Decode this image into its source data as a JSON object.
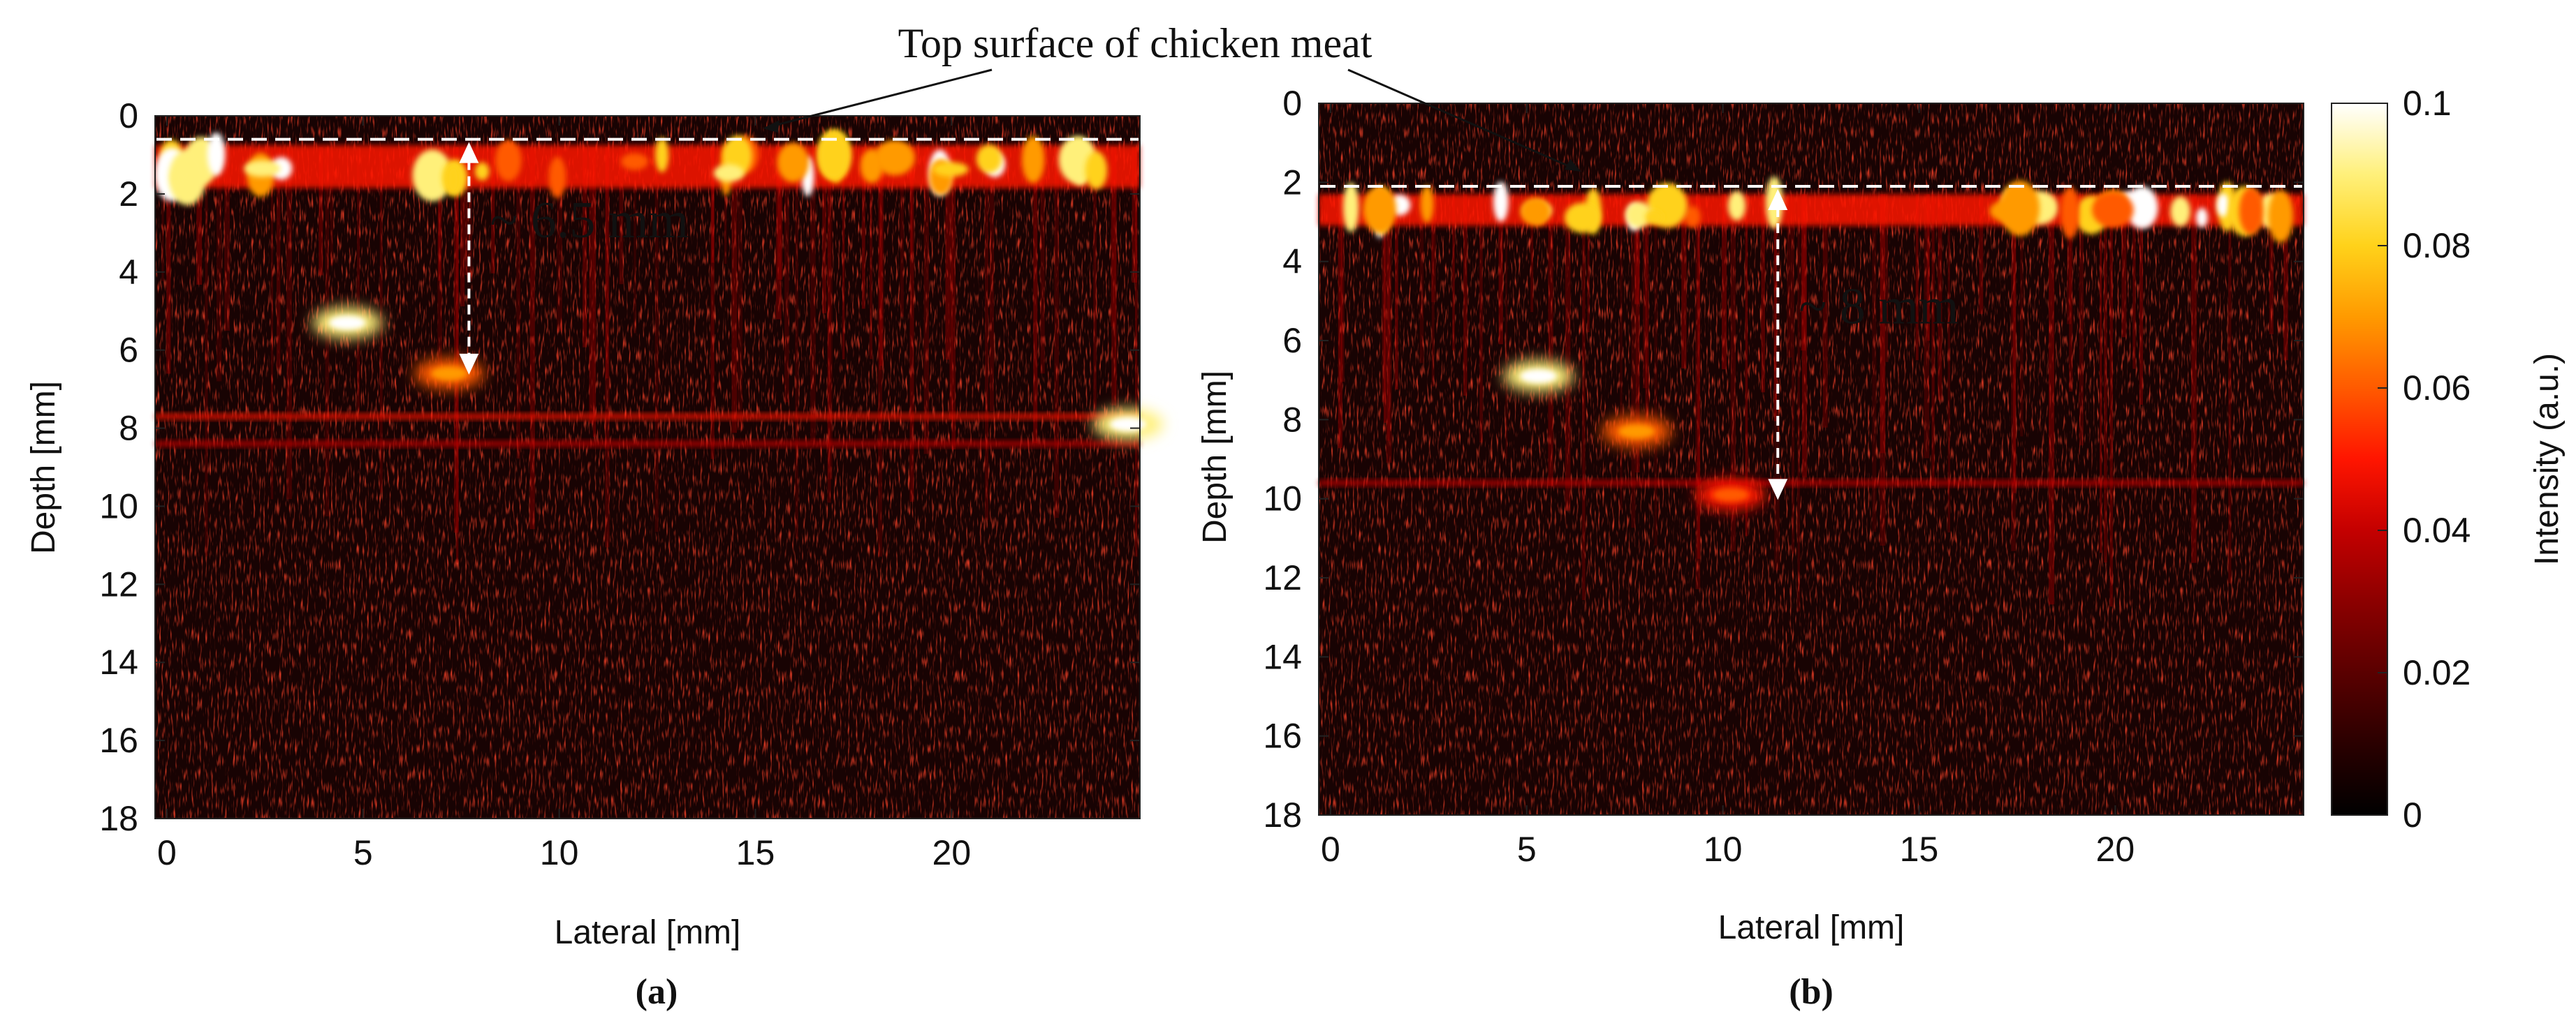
{
  "annotation_top": "Top surface of chicken meat",
  "colorbar": {
    "label": "Intensity (a.u.)",
    "ticks": [
      "0.1",
      "0.08",
      "0.06",
      "0.04",
      "0.02",
      "0"
    ],
    "range": [
      0,
      0.1
    ],
    "colormap": [
      "#000000",
      "#2a0000",
      "#5a0000",
      "#8c0000",
      "#c40000",
      "#ff1500",
      "#ff5a00",
      "#ff9a00",
      "#ffd21a",
      "#fff07a",
      "#ffffff"
    ]
  },
  "chart_data": [
    {
      "type": "heatmap",
      "panel_label": "(a)",
      "xlabel": "Lateral [mm]",
      "ylabel": "Depth [mm]",
      "xlim": [
        -0.3,
        24.8
      ],
      "ylim": [
        0,
        18
      ],
      "y_reversed": true,
      "xticks": [
        "0",
        "5",
        "10",
        "15",
        "20"
      ],
      "yticks": [
        "0",
        "2",
        "4",
        "6",
        "8",
        "10",
        "12",
        "14",
        "16",
        "18"
      ],
      "surface_depth_mm": 0.6,
      "arrow": {
        "x_mm": 7.7,
        "from_depth_mm": 0.6,
        "to_depth_mm": 6.7,
        "label": "~ 6.5 mm"
      },
      "features": [
        {
          "kind": "bright-band",
          "depth_mm": 1.3,
          "thickness_mm": 1.1,
          "intensity": 0.085
        },
        {
          "kind": "horizontal-line",
          "depth_mm": 7.7,
          "intensity": 0.05
        },
        {
          "kind": "horizontal-line",
          "depth_mm": 8.4,
          "intensity": 0.04
        },
        {
          "kind": "blob",
          "x_mm": 4.6,
          "depth_mm": 5.3,
          "intensity": 0.09
        },
        {
          "kind": "blob",
          "x_mm": 7.2,
          "depth_mm": 6.6,
          "intensity": 0.06
        },
        {
          "kind": "blob",
          "x_mm": 24.5,
          "depth_mm": 7.9,
          "intensity": 0.09
        }
      ]
    },
    {
      "type": "heatmap",
      "panel_label": "(b)",
      "xlabel": "Lateral [mm]",
      "ylabel": "Depth [mm]",
      "xlim": [
        -0.3,
        24.8
      ],
      "ylim": [
        0,
        18
      ],
      "y_reversed": true,
      "xticks": [
        "0",
        "5",
        "10",
        "15",
        "20"
      ],
      "yticks": [
        "0",
        "2",
        "4",
        "6",
        "8",
        "10",
        "12",
        "14",
        "16",
        "18"
      ],
      "surface_depth_mm": 2.1,
      "arrow": {
        "x_mm": 11.4,
        "from_depth_mm": 2.1,
        "to_depth_mm": 10.1,
        "label": "~ 8 mm"
      },
      "features": [
        {
          "kind": "bright-band",
          "depth_mm": 2.7,
          "thickness_mm": 0.8,
          "intensity": 0.085
        },
        {
          "kind": "horizontal-line",
          "depth_mm": 9.6,
          "intensity": 0.04
        },
        {
          "kind": "blob",
          "x_mm": 5.3,
          "depth_mm": 6.9,
          "intensity": 0.09
        },
        {
          "kind": "blob",
          "x_mm": 7.8,
          "depth_mm": 8.3,
          "intensity": 0.06
        },
        {
          "kind": "blob",
          "x_mm": 10.2,
          "depth_mm": 9.9,
          "intensity": 0.05
        }
      ]
    }
  ]
}
